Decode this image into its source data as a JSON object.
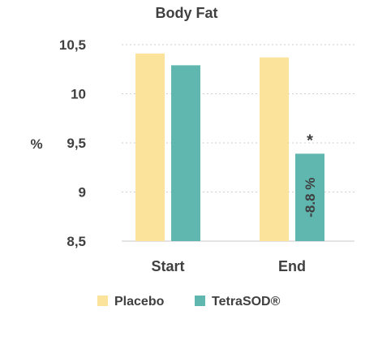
{
  "chart_data": {
    "type": "bar",
    "title": "Body Fat",
    "ylabel": "%",
    "categories": [
      "Start",
      "End"
    ],
    "series": [
      {
        "name": "Placebo",
        "values": [
          10.41,
          10.37
        ],
        "color": "#FBE39B"
      },
      {
        "name": "TetraSOD®",
        "values": [
          10.29,
          9.39
        ],
        "color": "#5FB7B0"
      }
    ],
    "ylim": [
      8.5,
      10.5
    ],
    "yticks": [
      "8,5",
      "9",
      "9,5",
      "10",
      "10,5"
    ],
    "ytick_values": [
      8.5,
      9,
      9.5,
      10,
      10.5
    ],
    "grid": true,
    "grid_style": "dotted",
    "legend_position": "bottom",
    "annotations": {
      "significance": "*",
      "change_label": "-8.8 %"
    }
  }
}
